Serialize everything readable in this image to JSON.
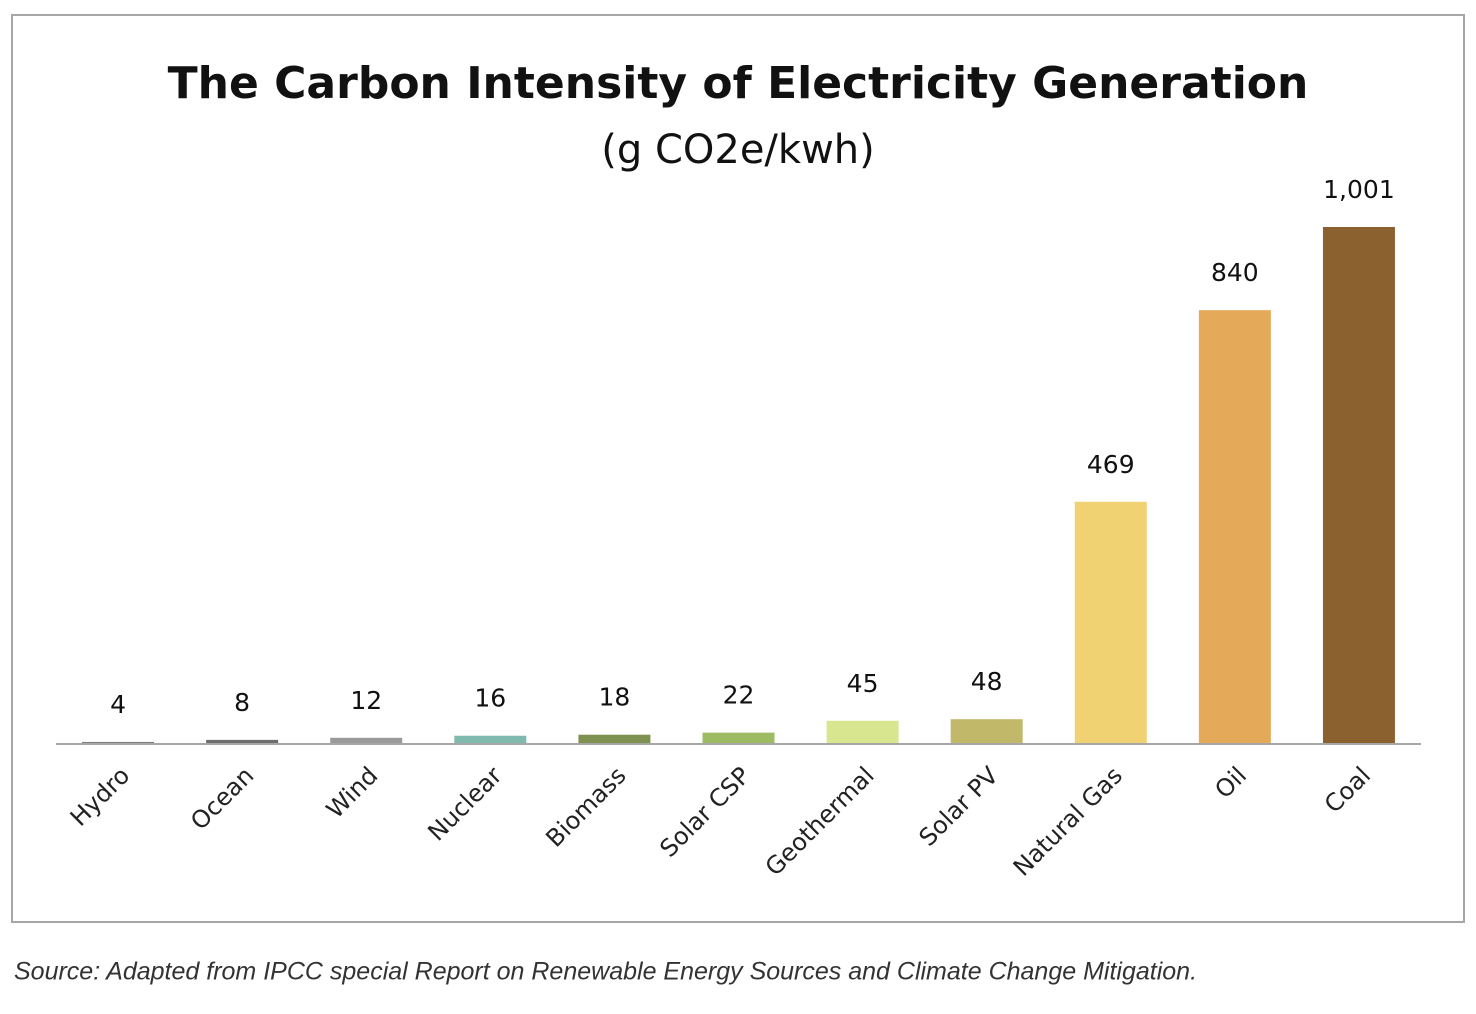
{
  "chart_data": {
    "type": "bar",
    "title": "The Carbon Intensity of Electricity Generation",
    "subtitle": "(g CO2e/kwh)",
    "categories": [
      "Hydro",
      "Ocean",
      "Wind",
      "Nuclear",
      "Biomass",
      "Solar CSP",
      "Geothermal",
      "Solar PV",
      "Natural Gas",
      "Oil",
      "Coal"
    ],
    "values": [
      4,
      8,
      12,
      16,
      18,
      22,
      45,
      48,
      469,
      840,
      1001
    ],
    "value_labels": [
      "4",
      "8",
      "12",
      "16",
      "18",
      "22",
      "45",
      "48",
      "469",
      "840",
      "1,001"
    ],
    "colors": [
      "#7f7f7f",
      "#6e6e6e",
      "#9a9a9a",
      "#80b9ae",
      "#7f9150",
      "#9dbb62",
      "#d8e690",
      "#c2b86a",
      "#f1d273",
      "#e4aa5a",
      "#8b6130"
    ],
    "source": "Source: Adapted from IPCC special Report on Renewable Energy Sources and Climate Change Mitigation."
  }
}
